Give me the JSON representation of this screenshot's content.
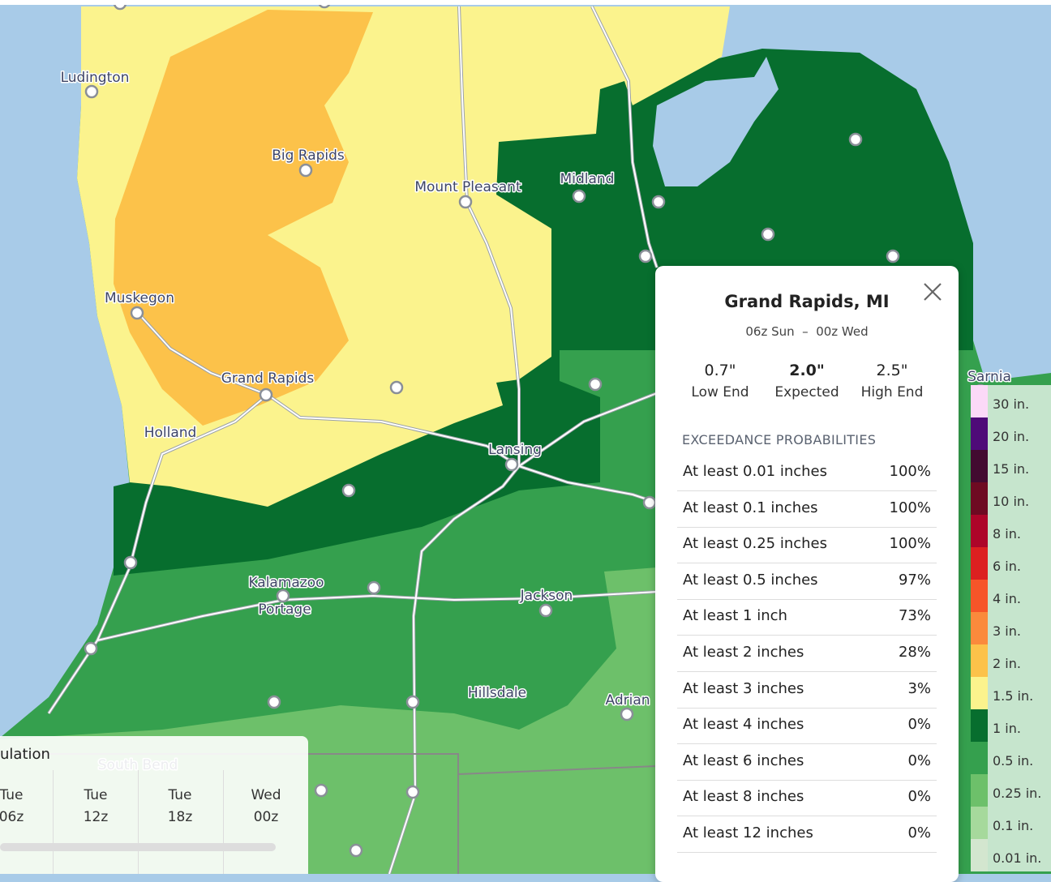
{
  "map": {
    "labels": [
      "Ludington",
      "Big Rapids",
      "Mount Pleasant",
      "Midland",
      "Muskegon",
      "Grand Rapids",
      "Holland",
      "Lansing",
      "Kalamazoo",
      "Portage",
      "Jackson",
      "Hillsdale",
      "Adrian",
      "South Bend",
      "Sarnia"
    ]
  },
  "timeline": {
    "title": "ulation",
    "slots": [
      {
        "day": "Tue",
        "time": "06z"
      },
      {
        "day": "Tue",
        "time": "12z"
      },
      {
        "day": "Tue",
        "time": "18z"
      },
      {
        "day": "Wed",
        "time": "00z"
      }
    ]
  },
  "popup": {
    "title": "Grand Rapids, MI",
    "period": "06z Sun  –  00z Wed",
    "stats": [
      {
        "value": "0.7\"",
        "label": "Low End"
      },
      {
        "value": "2.0\"",
        "label": "Expected"
      },
      {
        "value": "2.5\"",
        "label": "High End"
      }
    ],
    "section": "EXCEEDANCE PROBABILITIES",
    "rows": [
      {
        "label": "At least 0.01 inches",
        "value": "100%"
      },
      {
        "label": "At least 0.1 inches",
        "value": "100%"
      },
      {
        "label": "At least 0.25 inches",
        "value": "100%"
      },
      {
        "label": "At least 0.5 inches",
        "value": "97%"
      },
      {
        "label": "At least 1 inch",
        "value": "73%"
      },
      {
        "label": "At least 2 inches",
        "value": "28%"
      },
      {
        "label": "At least 3 inches",
        "value": "3%"
      },
      {
        "label": "At least 4 inches",
        "value": "0%"
      },
      {
        "label": "At least 6 inches",
        "value": "0%"
      },
      {
        "label": "At least 8 inches",
        "value": "0%"
      },
      {
        "label": "At least 12 inches",
        "value": "0%"
      }
    ]
  },
  "legend": {
    "items": [
      {
        "label": "30 in.",
        "color": "#fbd9f8"
      },
      {
        "label": "20 in.",
        "color": "#4e0a78"
      },
      {
        "label": "15 in.",
        "color": "#420a30"
      },
      {
        "label": "10 in.",
        "color": "#6e0a22"
      },
      {
        "label": "8 in.",
        "color": "#ad0529"
      },
      {
        "label": "6 in.",
        "color": "#dc2020"
      },
      {
        "label": "4 in.",
        "color": "#f65529"
      },
      {
        "label": "3 in.",
        "color": "#fa8a3c"
      },
      {
        "label": "2 in.",
        "color": "#fcc24a"
      },
      {
        "label": "1.5 in.",
        "color": "#fbf38d"
      },
      {
        "label": "1 in.",
        "color": "#076e2e"
      },
      {
        "label": "0.5 in.",
        "color": "#35a04e"
      },
      {
        "label": "0.25 in.",
        "color": "#6dc06a"
      },
      {
        "label": "0.1 in.",
        "color": "#a6d99c"
      },
      {
        "label": "0.01 in.",
        "color": "#d3e6cf"
      }
    ]
  }
}
